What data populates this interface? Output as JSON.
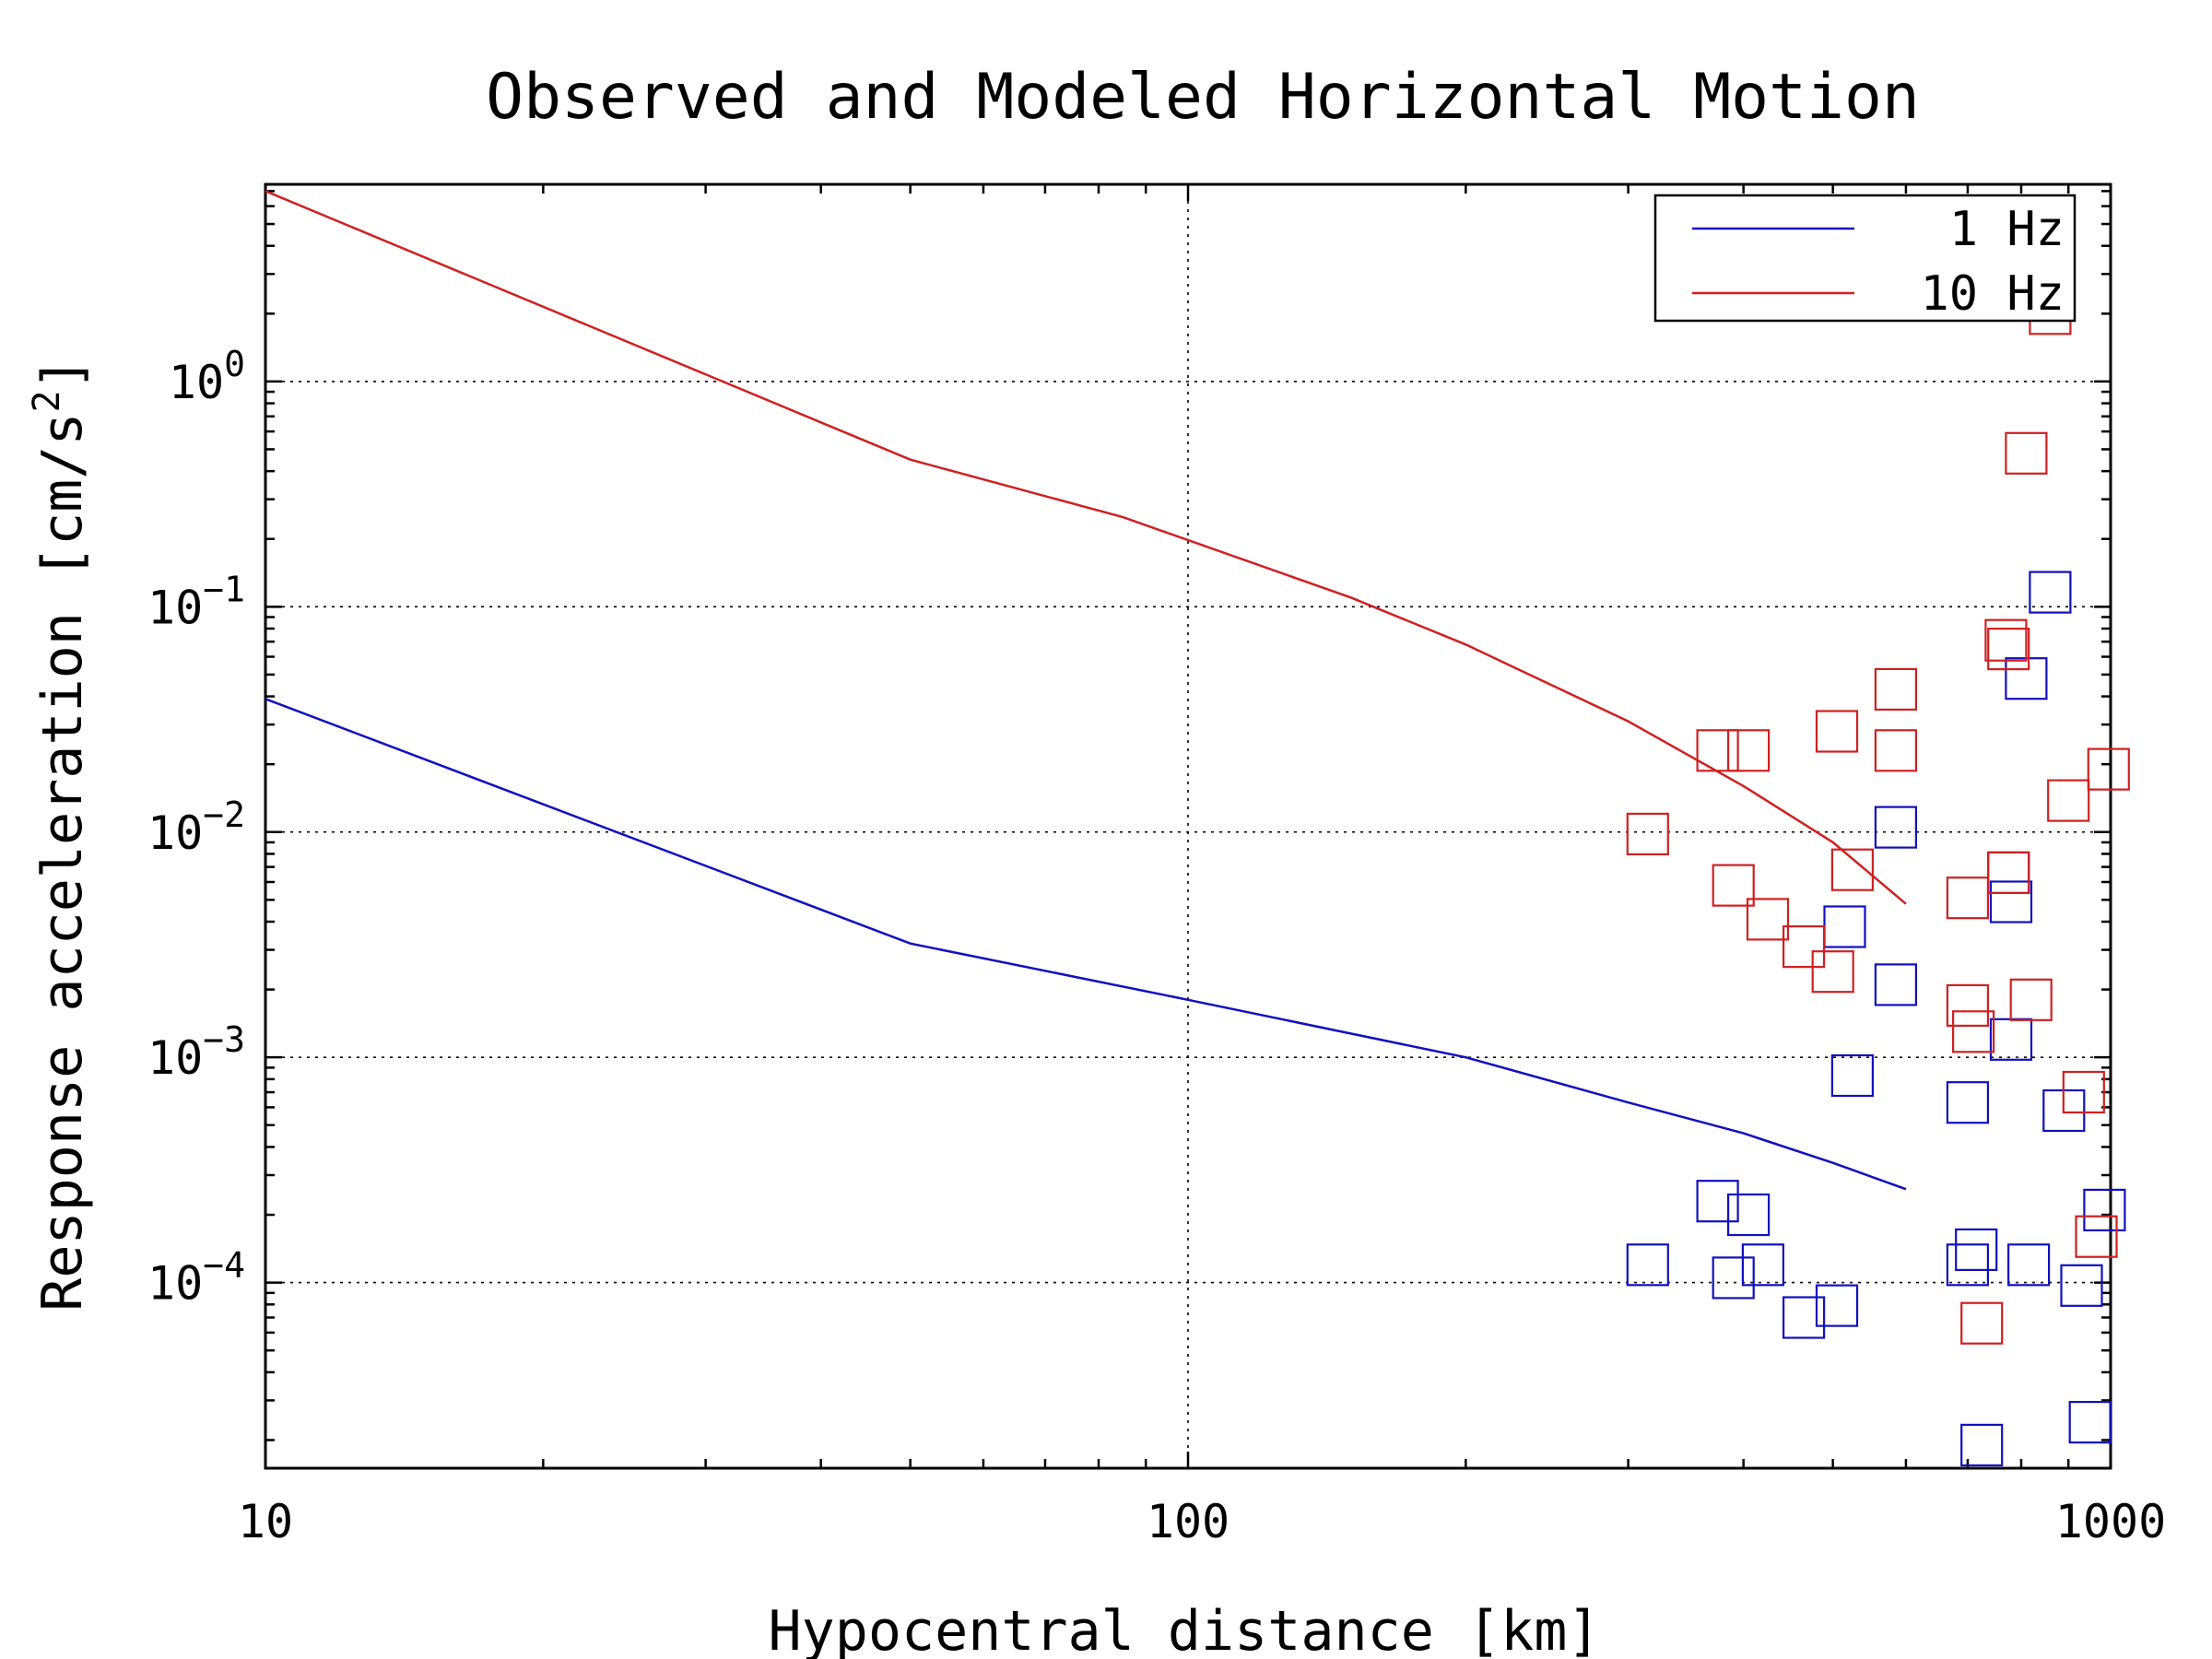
{
  "chart_data": {
    "type": "scatter",
    "title": "Observed and Modeled Horizontal Motion",
    "xlabel": "Hypocentral distance [km]",
    "ylabel": "Response acceleration [cm/s",
    "ylabel_sup": "2",
    "ylabel_close": "]",
    "xscale": "log",
    "yscale": "log",
    "xlim": [
      10,
      1000
    ],
    "ylim": [
      1.5e-05,
      7.5
    ],
    "x_ticks": [
      {
        "value": 10,
        "label": "10"
      },
      {
        "value": 100,
        "label": "100"
      },
      {
        "value": 1000,
        "label": "1000"
      }
    ],
    "y_ticks": [
      {
        "value": 1,
        "base": "10",
        "exp": "0"
      },
      {
        "value": 0.1,
        "base": "10",
        "exp": "−1"
      },
      {
        "value": 0.01,
        "base": "10",
        "exp": "−2"
      },
      {
        "value": 0.001,
        "base": "10",
        "exp": "−3"
      },
      {
        "value": 0.0001,
        "base": "10",
        "exp": "−4"
      }
    ],
    "grid": true,
    "legend_position": "top-right",
    "series": [
      {
        "name": "1 Hz",
        "color": "#1010c0",
        "line": [
          [
            10,
            0.039
          ],
          [
            50,
            0.0032
          ],
          [
            100,
            0.0018
          ],
          [
            200,
            0.001
          ],
          [
            300,
            0.00063
          ],
          [
            400,
            0.00046
          ],
          [
            500,
            0.00034
          ],
          [
            600,
            0.00026
          ]
        ],
        "points": [
          [
            315,
            0.00012
          ],
          [
            375,
            0.00023
          ],
          [
            390,
            0.000105
          ],
          [
            405,
            0.0002
          ],
          [
            420,
            0.00012
          ],
          [
            465,
            7e-05
          ],
          [
            505,
            7.9e-05
          ],
          [
            515,
            0.0038
          ],
          [
            525,
            0.00083
          ],
          [
            585,
            0.0021
          ],
          [
            585,
            0.0105
          ],
          [
            700,
            0.00063
          ],
          [
            700,
            0.00012
          ],
          [
            715,
            0.00014
          ],
          [
            725,
            1.9e-05
          ],
          [
            775,
            0.0066
          ],
          [
            780,
            0.0049
          ],
          [
            780,
            0.0012
          ],
          [
            810,
            0.048
          ],
          [
            815,
            0.00012
          ],
          [
            860,
            0.116
          ],
          [
            890,
            0.00058
          ],
          [
            930,
            9.7e-05
          ],
          [
            950,
            2.4e-05
          ],
          [
            985,
            0.00021
          ]
        ]
      },
      {
        "name": "10 Hz",
        "color": "#d02020",
        "line": [
          [
            10,
            7.0
          ],
          [
            50,
            0.45
          ],
          [
            85,
            0.25
          ],
          [
            150,
            0.11
          ],
          [
            200,
            0.068
          ],
          [
            300,
            0.031
          ],
          [
            400,
            0.016
          ],
          [
            500,
            0.009
          ],
          [
            600,
            0.0048
          ]
        ],
        "points": [
          [
            315,
            0.0098
          ],
          [
            375,
            0.023
          ],
          [
            390,
            0.0058
          ],
          [
            405,
            0.023
          ],
          [
            425,
            0.0041
          ],
          [
            465,
            0.0031
          ],
          [
            500,
            0.0024
          ],
          [
            505,
            0.028
          ],
          [
            525,
            0.0068
          ],
          [
            585,
            0.043
          ],
          [
            585,
            0.023
          ],
          [
            700,
            0.0051
          ],
          [
            700,
            0.0017
          ],
          [
            710,
            0.0013
          ],
          [
            725,
            6.6e-05
          ],
          [
            770,
            0.071
          ],
          [
            775,
            0.065
          ],
          [
            775,
            0.0066
          ],
          [
            810,
            0.48
          ],
          [
            820,
            0.0018
          ],
          [
            860,
            2.0
          ],
          [
            900,
            0.0138
          ],
          [
            935,
            0.0007
          ],
          [
            965,
            0.00016
          ],
          [
            995,
            0.019
          ]
        ]
      }
    ]
  }
}
